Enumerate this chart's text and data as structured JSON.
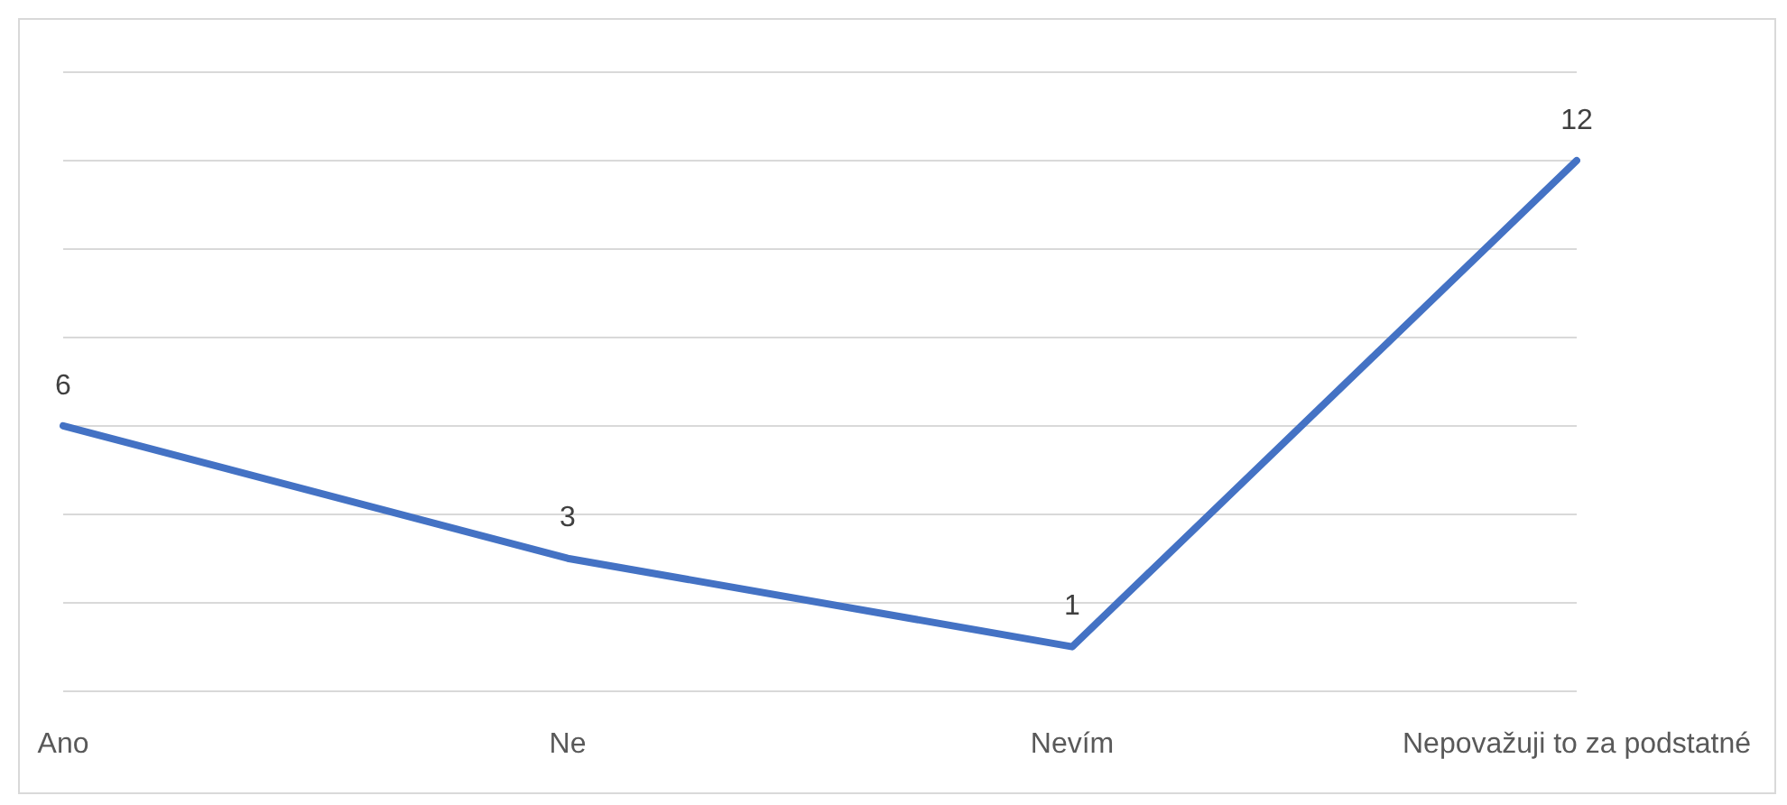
{
  "chart_data": {
    "type": "line",
    "categories": [
      "Ano",
      "Ne",
      "Nevím",
      "Nepovažuji to za podstatné"
    ],
    "series": [
      {
        "color": "#4472c4",
        "values": [
          6,
          3,
          1,
          12
        ]
      }
    ],
    "ylim": [
      0,
      14
    ],
    "yticks": [
      {
        "value": 0,
        "label": null
      },
      {
        "value": 2,
        "label": null
      },
      {
        "value": 4,
        "label": null
      },
      {
        "value": 6,
        "label": null
      },
      {
        "value": 8,
        "label": null
      },
      {
        "value": 10,
        "label": null
      },
      {
        "value": 12,
        "label": null
      },
      {
        "value": 14,
        "label": null
      }
    ],
    "tick_labels": "x",
    "grid": "y",
    "data_labels": true,
    "legend": false,
    "marker": "none",
    "line_style": "solid"
  }
}
